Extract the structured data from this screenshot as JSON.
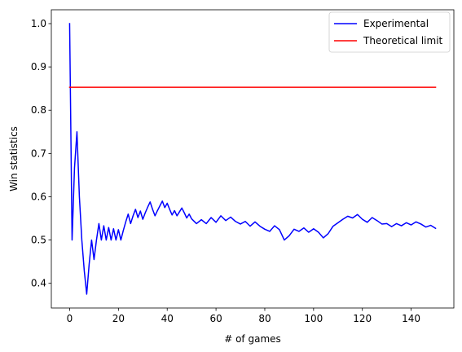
{
  "chart_data": {
    "type": "line",
    "title": "",
    "xlabel": "# of games",
    "ylabel": "Win statistics",
    "xlim": [
      -7.5,
      157.5
    ],
    "ylim": [
      0.343,
      1.032
    ],
    "xticks": [
      0,
      20,
      40,
      60,
      80,
      100,
      120,
      140
    ],
    "yticks": [
      0.4,
      0.5,
      0.6,
      0.7,
      0.8,
      0.9,
      1.0
    ],
    "ytick_labels": [
      "0.4",
      "0.5",
      "0.6",
      "0.7",
      "0.8",
      "0.9",
      "1.0"
    ],
    "grid": false,
    "legend_position": "top-right",
    "series": [
      {
        "name": "Experimental",
        "color": "#0000ff",
        "x": [
          0,
          1,
          2,
          3,
          4,
          5,
          6,
          7,
          8,
          9,
          10,
          11,
          12,
          13,
          14,
          15,
          16,
          17,
          18,
          19,
          20,
          21,
          22,
          23,
          24,
          25,
          26,
          27,
          28,
          29,
          30,
          31,
          32,
          33,
          34,
          35,
          36,
          37,
          38,
          39,
          40,
          41,
          42,
          43,
          44,
          45,
          46,
          47,
          48,
          49,
          50,
          52,
          54,
          56,
          58,
          60,
          62,
          64,
          66,
          68,
          70,
          72,
          74,
          76,
          78,
          80,
          82,
          84,
          86,
          88,
          90,
          92,
          94,
          96,
          98,
          100,
          102,
          104,
          106,
          108,
          110,
          112,
          114,
          116,
          118,
          120,
          122,
          124,
          126,
          128,
          130,
          132,
          134,
          136,
          138,
          140,
          142,
          144,
          146,
          148,
          150
        ],
        "y": [
          1.0,
          0.5,
          0.667,
          0.75,
          0.6,
          0.5,
          0.429,
          0.375,
          0.444,
          0.5,
          0.455,
          0.5,
          0.538,
          0.5,
          0.533,
          0.5,
          0.529,
          0.5,
          0.526,
          0.5,
          0.524,
          0.5,
          0.522,
          0.542,
          0.56,
          0.538,
          0.556,
          0.571,
          0.552,
          0.567,
          0.548,
          0.563,
          0.576,
          0.588,
          0.571,
          0.556,
          0.568,
          0.579,
          0.59,
          0.575,
          0.585,
          0.571,
          0.558,
          0.568,
          0.556,
          0.565,
          0.574,
          0.563,
          0.551,
          0.56,
          0.549,
          0.538,
          0.547,
          0.538,
          0.552,
          0.541,
          0.556,
          0.545,
          0.553,
          0.543,
          0.537,
          0.543,
          0.532,
          0.542,
          0.532,
          0.525,
          0.52,
          0.533,
          0.524,
          0.5,
          0.51,
          0.525,
          0.52,
          0.528,
          0.518,
          0.526,
          0.518,
          0.505,
          0.515,
          0.532,
          0.54,
          0.548,
          0.555,
          0.551,
          0.559,
          0.548,
          0.541,
          0.552,
          0.545,
          0.537,
          0.538,
          0.531,
          0.538,
          0.533,
          0.54,
          0.535,
          0.542,
          0.537,
          0.53,
          0.534,
          0.527
        ]
      },
      {
        "name": "Theoretical limit",
        "color": "#ff0000",
        "x": [
          0,
          150
        ],
        "y": [
          0.853,
          0.853
        ]
      }
    ]
  }
}
